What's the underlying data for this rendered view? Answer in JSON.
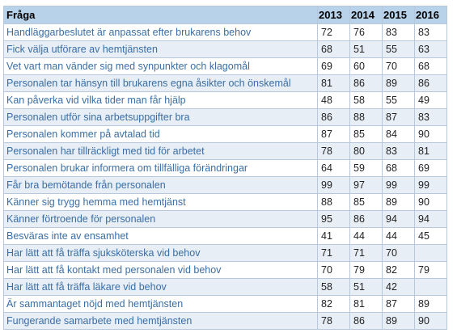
{
  "table": {
    "header": {
      "question": "Fråga",
      "years": [
        "2013",
        "2014",
        "2015",
        "2016"
      ]
    },
    "rows": [
      {
        "question": "Handläggarbeslutet är anpassat efter brukarens behov",
        "values": [
          "72",
          "76",
          "83",
          "83"
        ]
      },
      {
        "question": "Fick välja utförare av hemtjänsten",
        "values": [
          "68",
          "51",
          "55",
          "63"
        ]
      },
      {
        "question": "Vet vart man vänder sig med synpunkter och klagomål",
        "values": [
          "69",
          "60",
          "70",
          "68"
        ]
      },
      {
        "question": "Personalen tar hänsyn till brukarens egna åsikter och önskemål",
        "values": [
          "81",
          "86",
          "89",
          "86"
        ]
      },
      {
        "question": "Kan påverka vid vilka tider man får hjälp",
        "values": [
          "48",
          "58",
          "55",
          "49"
        ]
      },
      {
        "question": "Personalen utför sina arbetsuppgifter bra",
        "values": [
          "86",
          "88",
          "87",
          "83"
        ]
      },
      {
        "question": "Personalen kommer på avtalad tid",
        "values": [
          "87",
          "85",
          "84",
          "90"
        ]
      },
      {
        "question": "Personalen har tillräckligt med tid för arbetet",
        "values": [
          "78",
          "80",
          "83",
          "81"
        ]
      },
      {
        "question": "Personalen brukar informera om tillfälliga förändringar",
        "values": [
          "64",
          "59",
          "68",
          "69"
        ]
      },
      {
        "question": "Får bra bemötande från personalen",
        "values": [
          "99",
          "97",
          "99",
          "99"
        ]
      },
      {
        "question": "Känner sig trygg hemma med hemtjänst",
        "values": [
          "88",
          "85",
          "89",
          "90"
        ]
      },
      {
        "question": "Känner förtroende för personalen",
        "values": [
          "95",
          "86",
          "94",
          "94"
        ]
      },
      {
        "question": "Besväras inte av ensamhet",
        "values": [
          "41",
          "44",
          "44",
          "45"
        ]
      },
      {
        "question": "Har lätt att få träffa sjuksköterska vid behov",
        "values": [
          "71",
          "71",
          "70",
          ""
        ]
      },
      {
        "question": "Har lätt att få kontakt med personalen vid behov",
        "values": [
          "70",
          "79",
          "82",
          "79"
        ]
      },
      {
        "question": "Har lätt att få träffa läkare vid behov",
        "values": [
          "58",
          "51",
          "42",
          ""
        ]
      },
      {
        "question": "Är sammantaget nöjd med hemtjänsten",
        "values": [
          "82",
          "81",
          "87",
          "89"
        ]
      },
      {
        "question": "Fungerande samarbete med hemtjänsten",
        "values": [
          "78",
          "86",
          "89",
          "90"
        ]
      }
    ]
  },
  "colors": {
    "header_bg": "#b8d2ea",
    "link_text": "#3a6ea5",
    "stripe_bg": "#e8eef5",
    "border": "#b8c8da"
  }
}
